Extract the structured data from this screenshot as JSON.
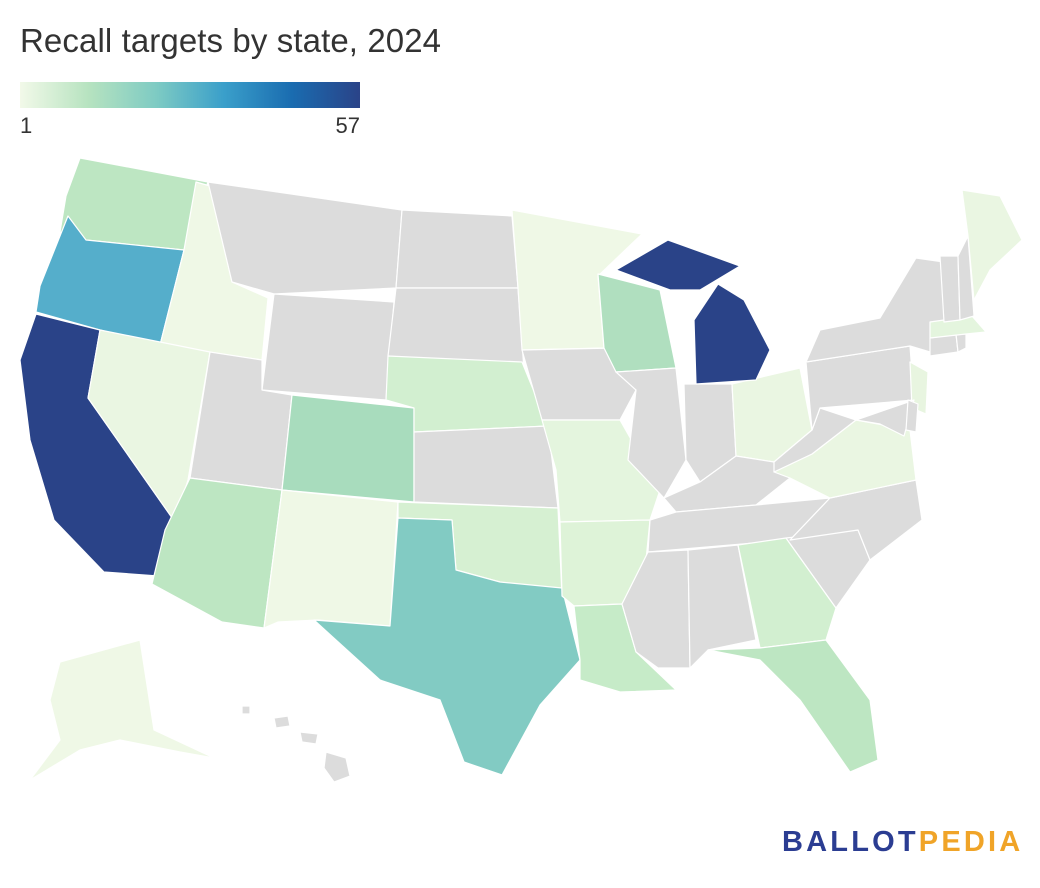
{
  "title": "Recall targets by state, 2024",
  "legend": {
    "min": "1",
    "max": "57",
    "colors": [
      "#f2f9e9",
      "#b7e3c0",
      "#7ecbc3",
      "#3a9fca",
      "#1a6cb0",
      "#2a4388"
    ],
    "no_data_color": "#dcdcdc"
  },
  "logo": {
    "part1": "BALLOT",
    "part2": "PEDIA"
  },
  "map_data": {
    "type": "choropleth",
    "region": "United States",
    "value_range": [
      1,
      57
    ],
    "states": [
      {
        "id": "CA",
        "color": "#2a4388"
      },
      {
        "id": "MI",
        "color": "#2a4388"
      },
      {
        "id": "OR",
        "color": "#55aecb"
      },
      {
        "id": "TX",
        "color": "#82cbc3"
      },
      {
        "id": "WA",
        "color": "#bde6c2"
      },
      {
        "id": "CO",
        "color": "#a8dcbd"
      },
      {
        "id": "WI",
        "color": "#b0dfbf"
      },
      {
        "id": "AZ",
        "color": "#bde6c2"
      },
      {
        "id": "FL",
        "color": "#bde6c2"
      },
      {
        "id": "LA",
        "color": "#c6ebc8"
      },
      {
        "id": "GA",
        "color": "#d2efd0"
      },
      {
        "id": "NE",
        "color": "#d2efd0"
      },
      {
        "id": "OK",
        "color": "#d6f0d2"
      },
      {
        "id": "AR",
        "color": "#def3d8"
      },
      {
        "id": "MO",
        "color": "#e4f5de"
      },
      {
        "id": "ID",
        "color": "#eff8e6"
      },
      {
        "id": "NV",
        "color": "#eaf6e2"
      },
      {
        "id": "NM",
        "color": "#eff8e6"
      },
      {
        "id": "MN",
        "color": "#eff8e6"
      },
      {
        "id": "OH",
        "color": "#eaf6e2"
      },
      {
        "id": "VA",
        "color": "#eaf6e2"
      },
      {
        "id": "NJ",
        "color": "#e8f5e0"
      },
      {
        "id": "MA",
        "color": "#e4f5de"
      },
      {
        "id": "ME",
        "color": "#eaf6e2"
      },
      {
        "id": "AK",
        "color": "#eff8e6"
      },
      {
        "id": "MT",
        "color": "#dcdcdc"
      },
      {
        "id": "WY",
        "color": "#dcdcdc"
      },
      {
        "id": "UT",
        "color": "#dcdcdc"
      },
      {
        "id": "ND",
        "color": "#dcdcdc"
      },
      {
        "id": "SD",
        "color": "#dcdcdc"
      },
      {
        "id": "KS",
        "color": "#dcdcdc"
      },
      {
        "id": "IA",
        "color": "#dcdcdc"
      },
      {
        "id": "IL",
        "color": "#dcdcdc"
      },
      {
        "id": "IN",
        "color": "#dcdcdc"
      },
      {
        "id": "KY",
        "color": "#dcdcdc"
      },
      {
        "id": "TN",
        "color": "#dcdcdc"
      },
      {
        "id": "MS",
        "color": "#dcdcdc"
      },
      {
        "id": "AL",
        "color": "#dcdcdc"
      },
      {
        "id": "SC",
        "color": "#dcdcdc"
      },
      {
        "id": "NC",
        "color": "#dcdcdc"
      },
      {
        "id": "WV",
        "color": "#dcdcdc"
      },
      {
        "id": "PA",
        "color": "#dcdcdc"
      },
      {
        "id": "NY",
        "color": "#dcdcdc"
      },
      {
        "id": "VT",
        "color": "#dcdcdc"
      },
      {
        "id": "NH",
        "color": "#dcdcdc"
      },
      {
        "id": "CT",
        "color": "#dcdcdc"
      },
      {
        "id": "RI",
        "color": "#dcdcdc"
      },
      {
        "id": "MD",
        "color": "#dcdcdc"
      },
      {
        "id": "DE",
        "color": "#dcdcdc"
      },
      {
        "id": "HI",
        "color": "#dcdcdc"
      }
    ]
  }
}
